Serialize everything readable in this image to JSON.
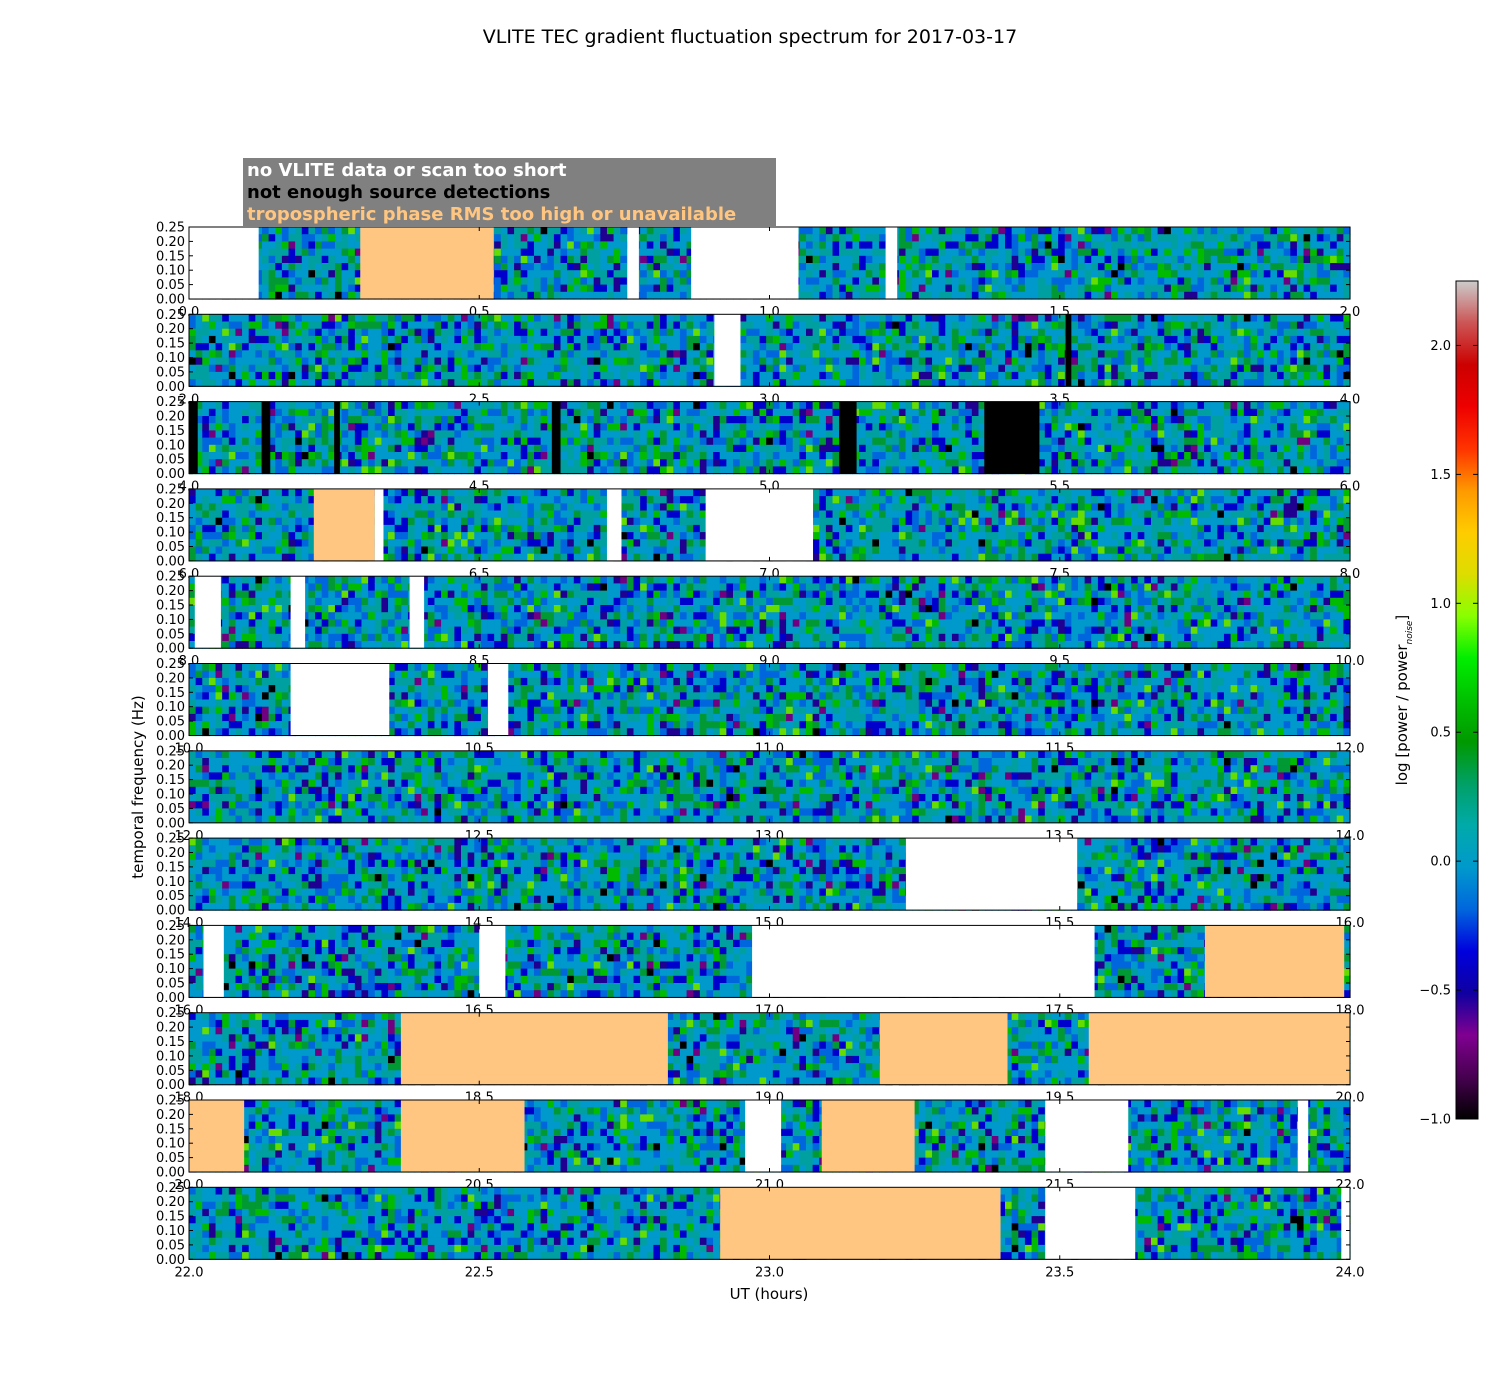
{
  "chart_data": {
    "type": "heatmap",
    "title": "VLITE TEC gradient fluctuation spectrum for 2017-03-17",
    "xlabel": "UT (hours)",
    "ylabel": "temporal frequency (Hz)",
    "ylim": [
      0.0,
      0.25
    ],
    "y_ticks": [
      "0.00",
      "0.05",
      "0.10",
      "0.15",
      "0.20",
      "0.25"
    ],
    "colorbar": {
      "label_prefix": "log [power / power",
      "label_sub": "noise",
      "label_suffix": "]",
      "range": [
        -1.0,
        2.25
      ],
      "ticks": [
        "−1.0",
        "−0.5",
        "0.0",
        "0.5",
        "1.0",
        "1.5",
        "2.0"
      ],
      "colormap": "nipy_spectral"
    },
    "legend": [
      {
        "label": "no VLITE data or scan too short",
        "color": "#ffffff"
      },
      {
        "label": "not enough source detections",
        "color": "#000000"
      },
      {
        "label": "tropospheric phase RMS too high or unavailable",
        "color": "#ffc681"
      }
    ],
    "colors": {
      "no_data": "#ffffff",
      "few_detections": "#000000",
      "tropo_rms_high": "#ffc681",
      "legend_box": "#808080"
    },
    "panels": [
      {
        "x_range": [
          0.0,
          2.0
        ],
        "x_ticks": [
          "0.0",
          "0.5",
          "1.0",
          "1.5",
          "2.0"
        ],
        "flags": [
          {
            "kind": "nodata",
            "from": 0.0,
            "to": 0.12
          },
          {
            "kind": "tropo",
            "from": 0.295,
            "to": 0.525
          },
          {
            "kind": "nodata",
            "from": 0.755,
            "to": 0.775
          },
          {
            "kind": "nodata",
            "from": 0.865,
            "to": 1.05
          },
          {
            "kind": "nodata",
            "from": 1.2,
            "to": 1.22
          }
        ]
      },
      {
        "x_range": [
          2.0,
          4.0
        ],
        "x_ticks": [
          "2.0",
          "2.5",
          "3.0",
          "3.5",
          "4.0"
        ],
        "flags": [
          {
            "kind": "nodata",
            "from": 2.905,
            "to": 2.95
          },
          {
            "kind": "detect",
            "from": 3.51,
            "to": 3.52
          }
        ]
      },
      {
        "x_range": [
          4.0,
          6.0
        ],
        "x_ticks": [
          "4.0",
          "4.5",
          "5.0",
          "5.5",
          "6.0"
        ],
        "flags": [
          {
            "kind": "detect",
            "from": 4.0,
            "to": 4.015
          },
          {
            "kind": "detect",
            "from": 4.125,
            "to": 4.14
          },
          {
            "kind": "detect",
            "from": 4.25,
            "to": 4.26
          },
          {
            "kind": "detect",
            "from": 4.625,
            "to": 4.64
          },
          {
            "kind": "detect",
            "from": 5.12,
            "to": 5.15
          },
          {
            "kind": "detect",
            "from": 5.37,
            "to": 5.465
          }
        ]
      },
      {
        "x_range": [
          6.0,
          8.0
        ],
        "x_ticks": [
          "6.0",
          "6.5",
          "7.0",
          "7.5",
          "8.0"
        ],
        "flags": [
          {
            "kind": "tropo",
            "from": 6.215,
            "to": 6.32
          },
          {
            "kind": "nodata",
            "from": 6.32,
            "to": 6.335
          },
          {
            "kind": "nodata",
            "from": 6.72,
            "to": 6.745
          },
          {
            "kind": "nodata",
            "from": 6.89,
            "to": 7.075
          }
        ]
      },
      {
        "x_range": [
          8.0,
          10.0
        ],
        "x_ticks": [
          "8.0",
          "8.5",
          "9.0",
          "9.5",
          "10.0"
        ],
        "flags": [
          {
            "kind": "nodata",
            "from": 8.01,
            "to": 8.055
          },
          {
            "kind": "nodata",
            "from": 8.175,
            "to": 8.2
          },
          {
            "kind": "nodata",
            "from": 8.38,
            "to": 8.405
          }
        ]
      },
      {
        "x_range": [
          10.0,
          12.0
        ],
        "x_ticks": [
          "10.0",
          "10.5",
          "11.0",
          "11.5",
          "12.0"
        ],
        "flags": [
          {
            "kind": "nodata",
            "from": 10.175,
            "to": 10.345
          },
          {
            "kind": "nodata",
            "from": 10.515,
            "to": 10.55
          }
        ]
      },
      {
        "x_range": [
          12.0,
          14.0
        ],
        "x_ticks": [
          "12.0",
          "12.5",
          "13.0",
          "13.5",
          "14.0"
        ],
        "flags": []
      },
      {
        "x_range": [
          14.0,
          16.0
        ],
        "x_ticks": [
          "14.0",
          "14.5",
          "15.0",
          "15.5",
          "16.0"
        ],
        "flags": [
          {
            "kind": "nodata",
            "from": 15.235,
            "to": 15.53
          }
        ]
      },
      {
        "x_range": [
          16.0,
          18.0
        ],
        "x_ticks": [
          "16.0",
          "16.5",
          "17.0",
          "17.5",
          "18.0"
        ],
        "flags": [
          {
            "kind": "nodata",
            "from": 16.025,
            "to": 16.06
          },
          {
            "kind": "nodata",
            "from": 16.5,
            "to": 16.545
          },
          {
            "kind": "nodata",
            "from": 16.97,
            "to": 17.56
          },
          {
            "kind": "tropo",
            "from": 17.75,
            "to": 17.99
          }
        ]
      },
      {
        "x_range": [
          18.0,
          20.0
        ],
        "x_ticks": [
          "18.0",
          "18.5",
          "19.0",
          "19.5",
          "20.0"
        ],
        "flags": [
          {
            "kind": "tropo",
            "from": 18.365,
            "to": 18.825
          },
          {
            "kind": "tropo",
            "from": 19.19,
            "to": 19.41
          },
          {
            "kind": "tropo",
            "from": 19.55,
            "to": 20.0
          }
        ]
      },
      {
        "x_range": [
          20.0,
          22.0
        ],
        "x_ticks": [
          "20.0",
          "20.5",
          "21.0",
          "21.5",
          "22.0"
        ],
        "flags": [
          {
            "kind": "tropo",
            "from": 20.0,
            "to": 20.095
          },
          {
            "kind": "tropo",
            "from": 20.365,
            "to": 20.578
          },
          {
            "kind": "nodata",
            "from": 20.958,
            "to": 21.02
          },
          {
            "kind": "tropo",
            "from": 21.09,
            "to": 21.25
          },
          {
            "kind": "nodata",
            "from": 21.475,
            "to": 21.618
          },
          {
            "kind": "nodata",
            "from": 21.91,
            "to": 21.928
          }
        ]
      },
      {
        "x_range": [
          22.0,
          24.0
        ],
        "x_ticks": [
          "22.0",
          "22.5",
          "23.0",
          "23.5",
          "24.0"
        ],
        "flags": [
          {
            "kind": "tropo",
            "from": 22.915,
            "to": 23.398
          },
          {
            "kind": "nodata",
            "from": 23.475,
            "to": 23.63
          },
          {
            "kind": "nodata",
            "from": 23.985,
            "to": 24.0
          }
        ]
      }
    ]
  }
}
